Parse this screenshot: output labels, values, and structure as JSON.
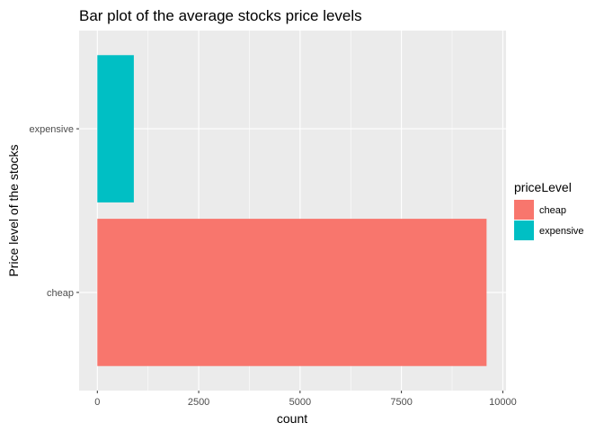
{
  "chart_data": {
    "type": "bar",
    "orientation": "horizontal",
    "title": "Bar plot of the average stocks price levels",
    "xlabel": "count",
    "ylabel": "Price level of the stocks",
    "categories": [
      "cheap",
      "expensive"
    ],
    "values": [
      9600,
      900
    ],
    "colors": [
      "#F8766D",
      "#00BFC4"
    ],
    "xlim": [
      -450,
      10080
    ],
    "xticks": [
      0,
      2500,
      5000,
      7500,
      10000
    ],
    "xtick_labels": [
      "0",
      "2500",
      "5000",
      "7500",
      "10000"
    ],
    "grid": true,
    "legend": {
      "title": "priceLevel",
      "entries": [
        "cheap",
        "expensive"
      ],
      "placement": "right"
    },
    "panel_background": "#EBEBEB",
    "grid_color": "#FFFFFF"
  }
}
